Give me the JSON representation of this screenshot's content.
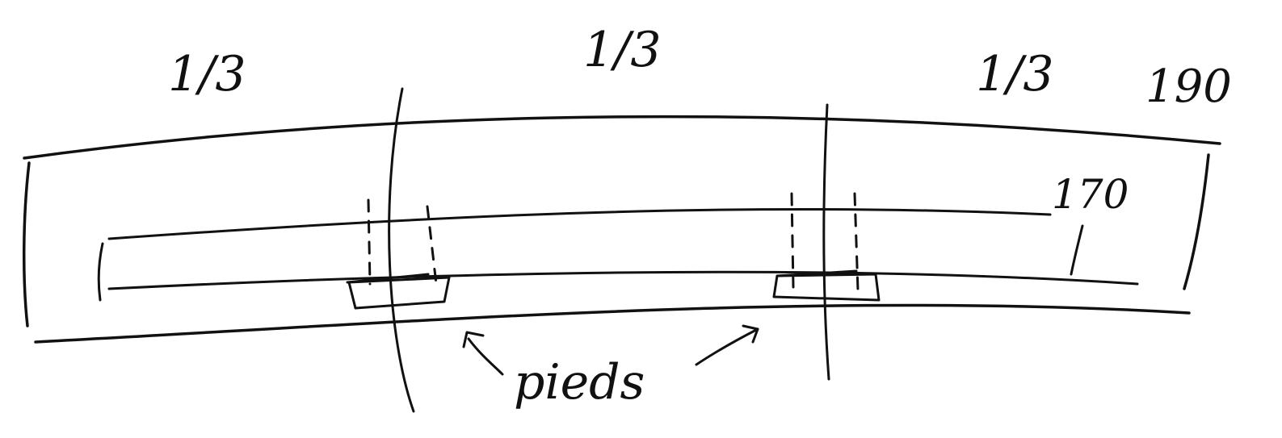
{
  "labels": {
    "third_left": "1/3",
    "third_middle": "1/3",
    "third_right": "1/3",
    "outer_length": "190",
    "inner_length": "170",
    "feet": "pieds"
  },
  "colors": {
    "ink": "#111111",
    "paper": "#ffffff"
  }
}
